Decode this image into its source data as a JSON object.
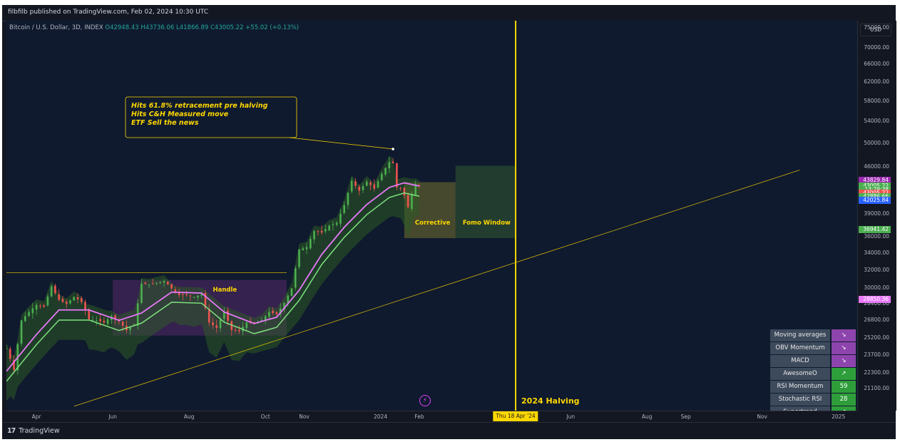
{
  "publish_line": "filbfilb published on TradingView.com, Feb 02, 2024 10:30 UTC",
  "legend": {
    "symbol": "Bitcoin / U.S. Dollar, 3D, INDEX",
    "ohlc": "O42948.43 H43736.06 L41866.89 C43005.22 +55.02 (+0.13%)"
  },
  "currency_button": "USD",
  "footer_logo": "TradingView",
  "footer_logo_mark": "17",
  "annotation_lines": [
    "Hits 61.8% retracement pre halving",
    "Hits C&H Measured move",
    "ETF Sell the news"
  ],
  "zone_labels": {
    "handle": "Handle",
    "corrective": "Corrective",
    "fomo": "Fomo Window"
  },
  "halving_label": "2024 Halving",
  "halving_date_tag": "Thu 18 Apr '24",
  "indicator_table": [
    {
      "name": "Moving averages",
      "value": "↘",
      "status": "purple"
    },
    {
      "name": "OBV Momentum",
      "value": "↘",
      "status": "purple"
    },
    {
      "name": "MACD",
      "value": "↘",
      "status": "purple"
    },
    {
      "name": "AwesomeO",
      "value": "↗",
      "status": "green"
    },
    {
      "name": "RSI Momentum",
      "value": "59",
      "status": "green"
    },
    {
      "name": "Stochastic RSI",
      "value": "28",
      "status": "green"
    },
    {
      "name": "Supertrend",
      "value": "↗",
      "status": "green"
    }
  ],
  "colors": {
    "background": "#0f1a2e",
    "up_candle": "#4caf50",
    "down_candle": "#ef5350",
    "ma_line": "#e879f9",
    "trend_line": "#ffd700",
    "bull_ribbon": "#2d5a27",
    "bear_ribbon": "#5b2a6e"
  },
  "chart_data": {
    "type": "candlestick",
    "title": "Bitcoin / U.S. Dollar, 3D, INDEX",
    "y_scale": "log",
    "y_ticks": [
      21100,
      22300,
      23700,
      25200,
      26800,
      28400,
      30000,
      32000,
      34000,
      36000,
      39000,
      42000,
      46000,
      50000,
      54000,
      58000,
      62000,
      66000,
      70000,
      75000
    ],
    "y_tick_labels": [
      "21100.00",
      "22300.00",
      "23700.00",
      "25200.00",
      "26800.00",
      "28400.00",
      "30000.00",
      "32000.00",
      "34000.00",
      "36000.00",
      "39000.00",
      "42000.00",
      "46000.00",
      "50000.00",
      "54000.00",
      "58000.00",
      "62000.00",
      "66000.00",
      "70000.00",
      "75000.00"
    ],
    "price_tags": [
      {
        "label": "43829.84",
        "value": 43830,
        "color": "#9c27b0"
      },
      {
        "label": "43005.22",
        "value": 43005,
        "color": "#4caf50"
      },
      {
        "label": "13:29:38",
        "value": 42520,
        "color": "#4caf50"
      },
      {
        "label": "43005.22",
        "value": 41950,
        "color": "#ef5350"
      },
      {
        "label": "42886.66",
        "value": 41430,
        "color": "#4caf50"
      },
      {
        "label": "42025.84",
        "value": 40900,
        "color": "#2962ff"
      },
      {
        "label": "36941.42",
        "value": 36941,
        "color": "#4caf50"
      },
      {
        "label": "28850.36",
        "value": 28850,
        "color": "#e879f9"
      }
    ],
    "x_ticks": [
      {
        "label": "Apr",
        "date": "2023-04-01"
      },
      {
        "label": "Jun",
        "date": "2023-06-01"
      },
      {
        "label": "Aug",
        "date": "2023-08-01"
      },
      {
        "label": "Oct",
        "date": "2023-10-01"
      },
      {
        "label": "Nov",
        "date": "2023-11-01"
      },
      {
        "label": "2024",
        "date": "2024-01-01"
      },
      {
        "label": "Feb",
        "date": "2024-02-01"
      },
      {
        "label": "Jun",
        "date": "2024-06-01"
      },
      {
        "label": "Aug",
        "date": "2024-08-01"
      },
      {
        "label": "Sep",
        "date": "2024-09-01"
      },
      {
        "label": "Nov",
        "date": "2024-11-01"
      },
      {
        "label": "2025",
        "date": "2025-01-01"
      }
    ],
    "x_range": [
      "2023-03-08",
      "2025-01-16"
    ],
    "y_range": [
      19500,
      77000
    ],
    "price_path": [
      [
        "2023-03-08",
        24300
      ],
      [
        "2023-03-14",
        22500
      ],
      [
        "2023-03-20",
        26800
      ],
      [
        "2023-03-26",
        27600
      ],
      [
        "2023-04-01",
        28300
      ],
      [
        "2023-04-07",
        28100
      ],
      [
        "2023-04-13",
        30200
      ],
      [
        "2023-04-19",
        28800
      ],
      [
        "2023-04-25",
        28400
      ],
      [
        "2023-05-01",
        29100
      ],
      [
        "2023-05-07",
        28600
      ],
      [
        "2023-05-13",
        26900
      ],
      [
        "2023-05-19",
        26800
      ],
      [
        "2023-05-25",
        26600
      ],
      [
        "2023-05-31",
        27200
      ],
      [
        "2023-06-06",
        26700
      ],
      [
        "2023-06-12",
        25900
      ],
      [
        "2023-06-18",
        26400
      ],
      [
        "2023-06-24",
        30500
      ],
      [
        "2023-06-30",
        30400
      ],
      [
        "2023-07-06",
        30600
      ],
      [
        "2023-07-12",
        30800
      ],
      [
        "2023-07-18",
        30000
      ],
      [
        "2023-07-24",
        29300
      ],
      [
        "2023-07-30",
        29300
      ],
      [
        "2023-08-05",
        29100
      ],
      [
        "2023-08-11",
        29400
      ],
      [
        "2023-08-17",
        26600
      ],
      [
        "2023-08-23",
        26100
      ],
      [
        "2023-08-29",
        27600
      ],
      [
        "2023-09-04",
        25900
      ],
      [
        "2023-09-10",
        25800
      ],
      [
        "2023-09-16",
        26600
      ],
      [
        "2023-09-22",
        26500
      ],
      [
        "2023-09-28",
        26800
      ],
      [
        "2023-10-04",
        27600
      ],
      [
        "2023-10-10",
        27400
      ],
      [
        "2023-10-16",
        28500
      ],
      [
        "2023-10-22",
        30000
      ],
      [
        "2023-10-28",
        34400
      ],
      [
        "2023-11-03",
        34700
      ],
      [
        "2023-11-09",
        36700
      ],
      [
        "2023-11-15",
        36500
      ],
      [
        "2023-11-21",
        37400
      ],
      [
        "2023-11-27",
        37800
      ],
      [
        "2023-12-03",
        40200
      ],
      [
        "2023-12-09",
        43800
      ],
      [
        "2023-12-15",
        42300
      ],
      [
        "2023-12-21",
        43700
      ],
      [
        "2023-12-27",
        42600
      ],
      [
        "2024-01-02",
        44900
      ],
      [
        "2024-01-08",
        46800
      ],
      [
        "2024-01-11",
        46600
      ],
      [
        "2024-01-14",
        42800
      ],
      [
        "2024-01-17",
        42700
      ],
      [
        "2024-01-20",
        41600
      ],
      [
        "2024-01-23",
        39900
      ],
      [
        "2024-01-26",
        41800
      ],
      [
        "2024-01-29",
        43300
      ],
      [
        "2024-02-01",
        43005
      ]
    ],
    "ma_path": [
      [
        "2023-03-08",
        22400
      ],
      [
        "2023-04-01",
        25500
      ],
      [
        "2023-04-19",
        27800
      ],
      [
        "2023-05-13",
        27800
      ],
      [
        "2023-06-06",
        26800
      ],
      [
        "2023-06-24",
        27500
      ],
      [
        "2023-07-18",
        29600
      ],
      [
        "2023-08-11",
        29500
      ],
      [
        "2023-08-29",
        27600
      ],
      [
        "2023-09-22",
        26500
      ],
      [
        "2023-10-10",
        27100
      ],
      [
        "2023-10-28",
        29800
      ],
      [
        "2023-11-15",
        33800
      ],
      [
        "2023-12-03",
        37200
      ],
      [
        "2023-12-21",
        40300
      ],
      [
        "2024-01-08",
        42800
      ],
      [
        "2024-01-20",
        43500
      ],
      [
        "2024-02-01",
        43000
      ]
    ],
    "horizontal_levels": [
      {
        "value": 31700,
        "from": "2023-03-08",
        "to": "2023-10-18"
      }
    ],
    "trend_line": {
      "from": [
        "2023-05-01",
        19800
      ],
      "to": [
        "2024-12-01",
        45500
      ]
    },
    "zones": [
      {
        "name": "Handle",
        "from": "2023-06-01",
        "to": "2023-10-18",
        "low": 25400,
        "high": 30900
      },
      {
        "name": "Corrective",
        "from": "2024-01-20",
        "to": "2024-03-01",
        "low": 35800,
        "high": 43600
      },
      {
        "name": "Fomo Window",
        "from": "2024-03-01",
        "to": "2024-04-18",
        "low": 35800,
        "high": 46200
      }
    ],
    "vertical_line": {
      "date": "2024-04-18",
      "label": "2024 Halving"
    },
    "annotation_target": [
      "2024-01-11",
      49000
    ]
  }
}
